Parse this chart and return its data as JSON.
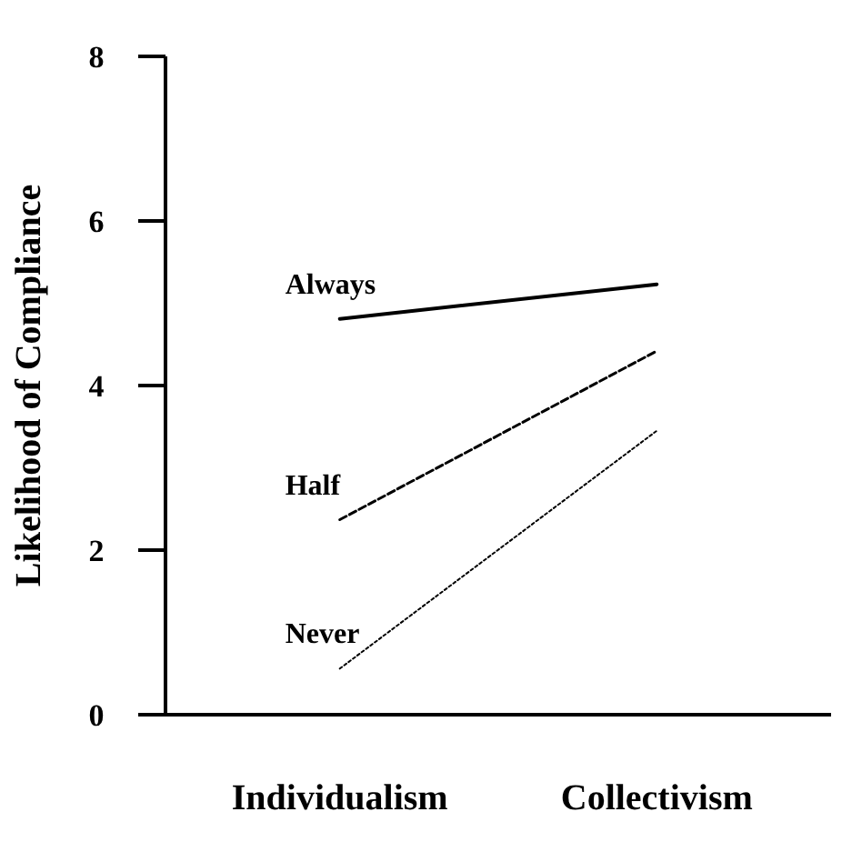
{
  "chart_data": {
    "type": "line",
    "ylabel": "Likelihood of Compliance",
    "ylim": [
      0,
      8
    ],
    "yticks": [
      0,
      2,
      4,
      6,
      8
    ],
    "categories": [
      "Individualism",
      "Collectivism"
    ],
    "grid": false,
    "marker": "none",
    "series": [
      {
        "name": "Always",
        "color": "#000000",
        "line_style": "solid",
        "values": [
          4.81,
          5.23
        ]
      },
      {
        "name": "Half",
        "color": "#000000",
        "line_style": "dashed",
        "values": [
          2.37,
          4.42
        ]
      },
      {
        "name": "Never",
        "color": "#000000",
        "line_style": "dotted",
        "values": [
          0.56,
          3.45
        ]
      }
    ]
  }
}
